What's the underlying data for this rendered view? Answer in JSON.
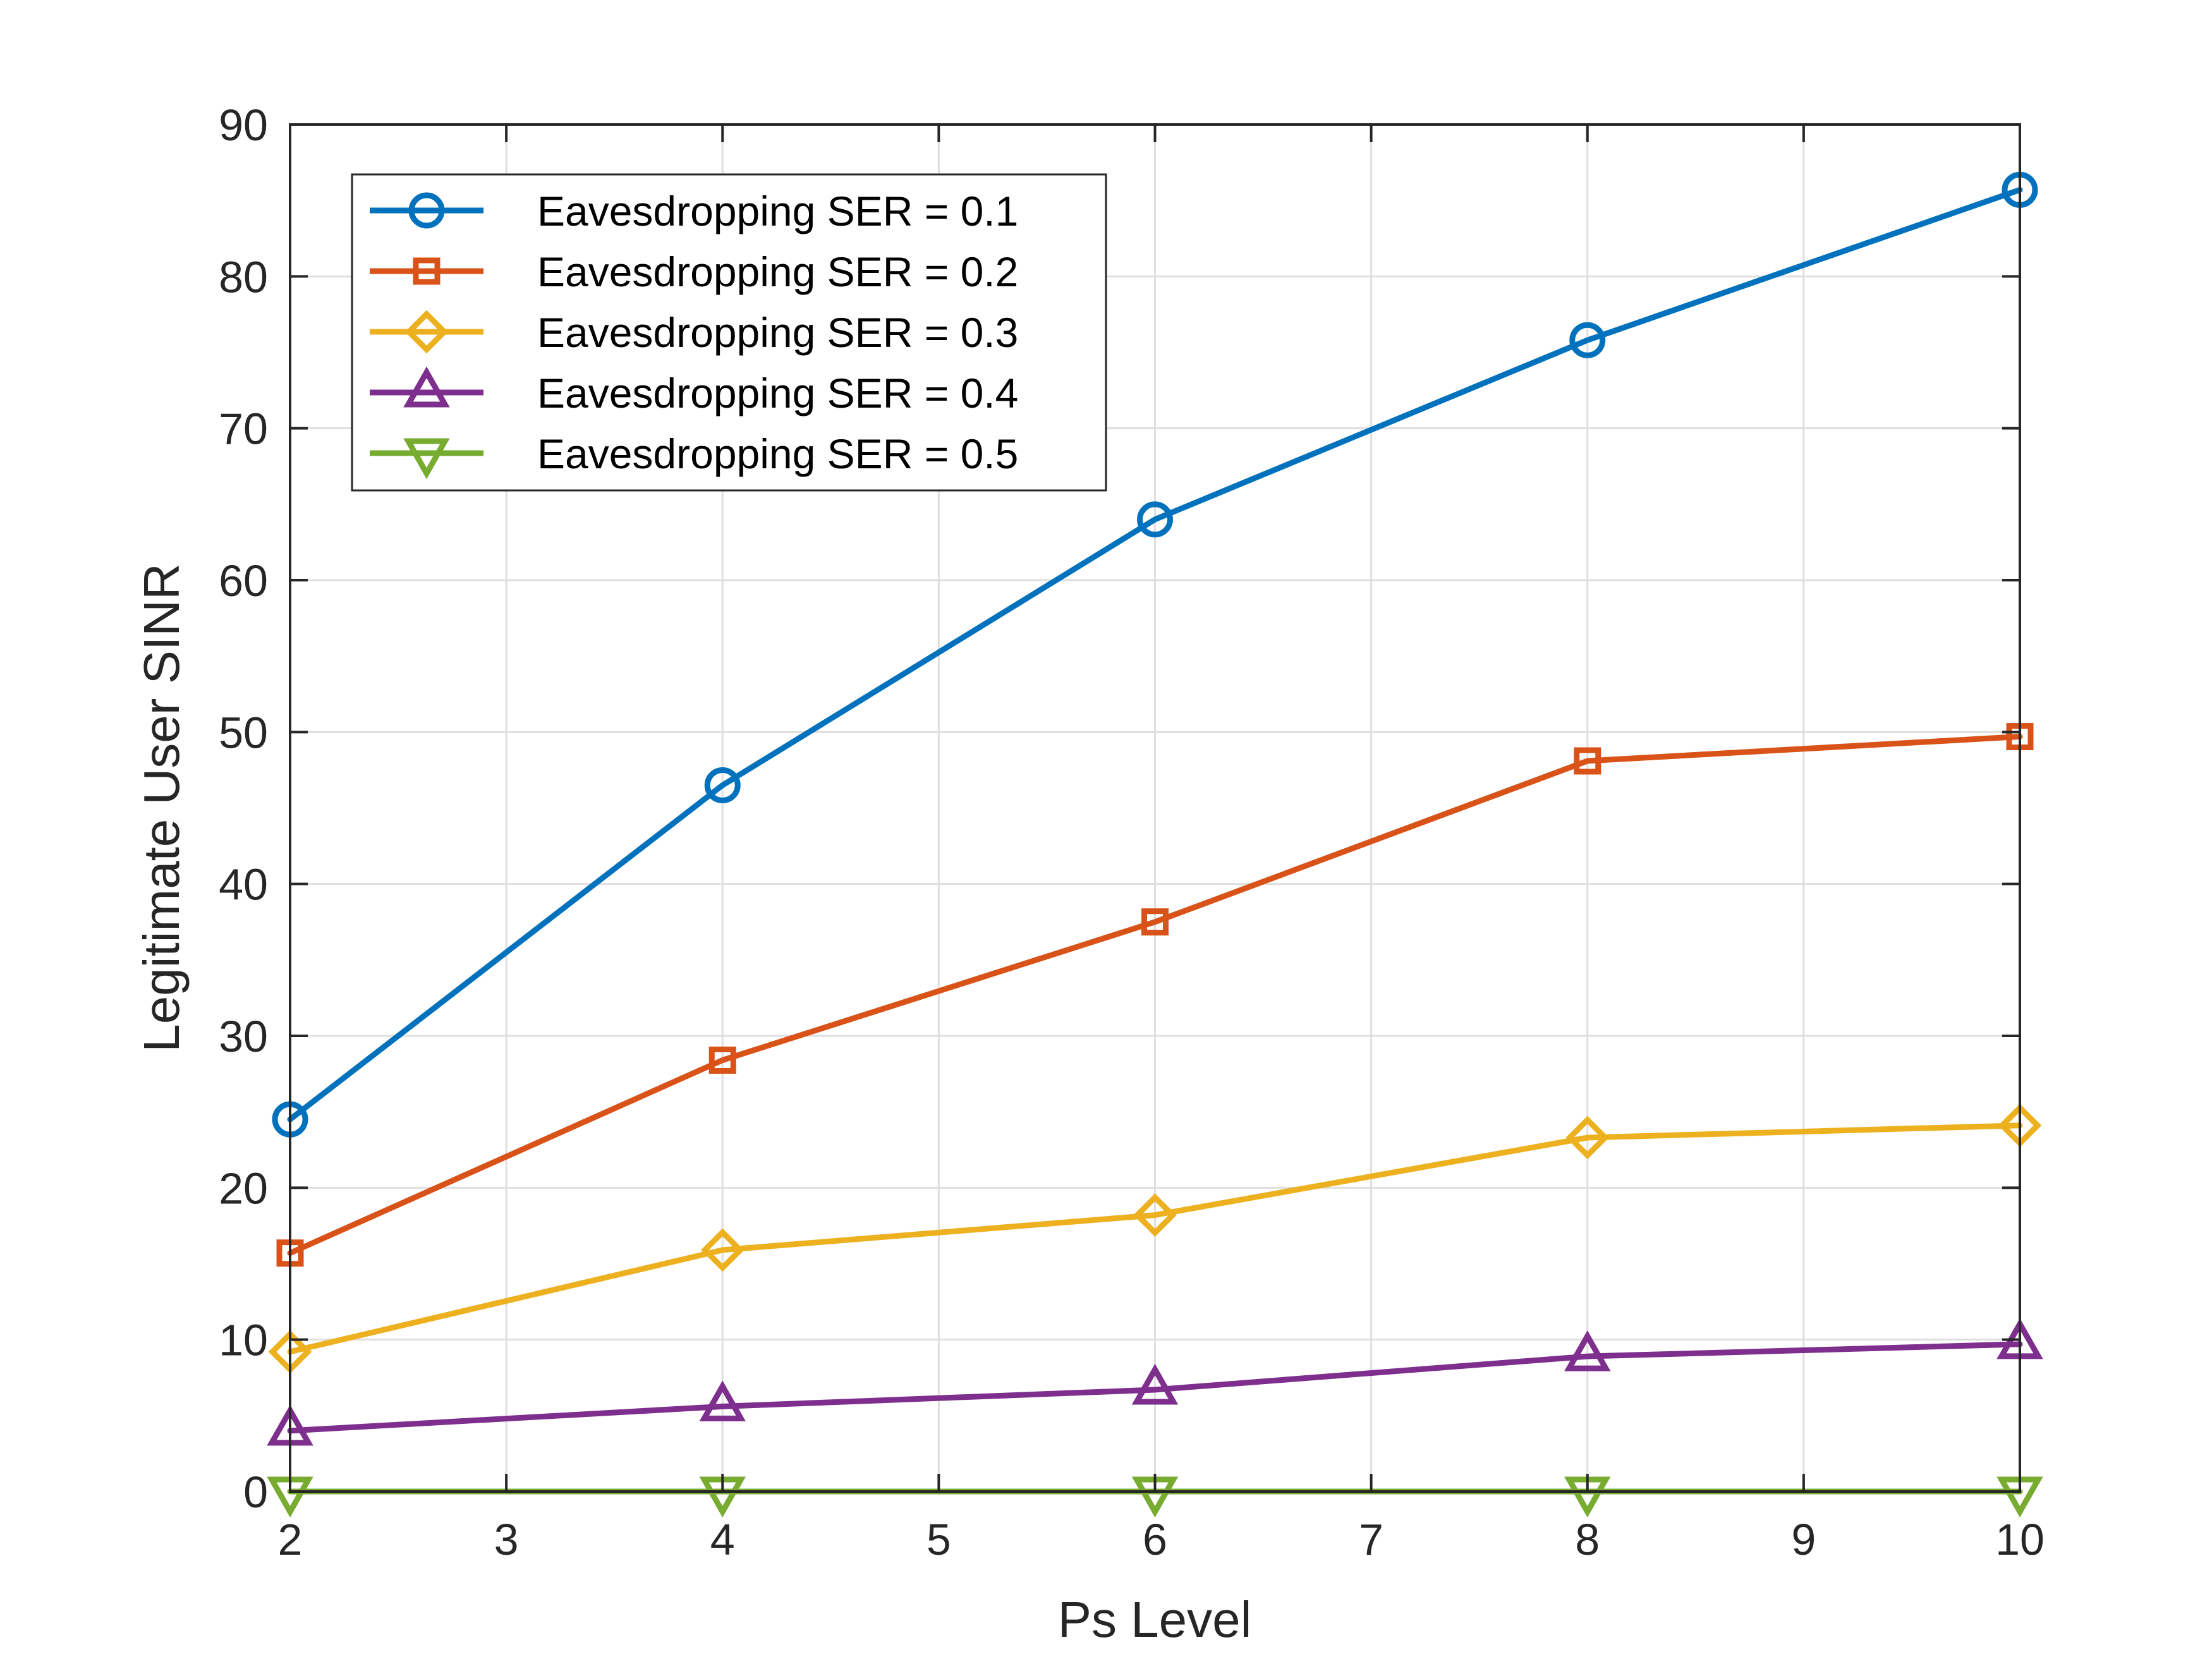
{
  "chart_data": {
    "type": "line",
    "title": "",
    "xlabel": "Ps Level",
    "ylabel": "Legitimate User SINR",
    "xlim": [
      2,
      10
    ],
    "ylim": [
      0,
      90
    ],
    "xticks": [
      2,
      3,
      4,
      5,
      6,
      7,
      8,
      9,
      10
    ],
    "yticks": [
      0,
      10,
      20,
      30,
      40,
      50,
      60,
      70,
      80,
      90
    ],
    "grid": true,
    "legend_position": "top-left",
    "x": [
      2,
      4,
      6,
      8,
      10
    ],
    "series": [
      {
        "name": "Eavesdropping SER = 0.1",
        "values": [
          24.5,
          46.5,
          64.0,
          75.8,
          85.7
        ],
        "marker": "circle",
        "color": "#0072BD"
      },
      {
        "name": "Eavesdropping SER = 0.2",
        "values": [
          15.7,
          28.4,
          37.5,
          48.1,
          49.7
        ],
        "marker": "square",
        "color": "#D95319"
      },
      {
        "name": "Eavesdropping SER = 0.3",
        "values": [
          9.2,
          15.9,
          18.2,
          23.3,
          24.1
        ],
        "marker": "diamond",
        "color": "#EDB120"
      },
      {
        "name": "Eavesdropping SER = 0.4",
        "values": [
          4.0,
          5.6,
          6.7,
          8.9,
          9.7
        ],
        "marker": "triangle-up",
        "color": "#7E2F8E"
      },
      {
        "name": "Eavesdropping SER = 0.5",
        "values": [
          0.0,
          0.0,
          0.0,
          0.0,
          0.0
        ],
        "marker": "triangle-down",
        "color": "#77AC30"
      }
    ]
  }
}
